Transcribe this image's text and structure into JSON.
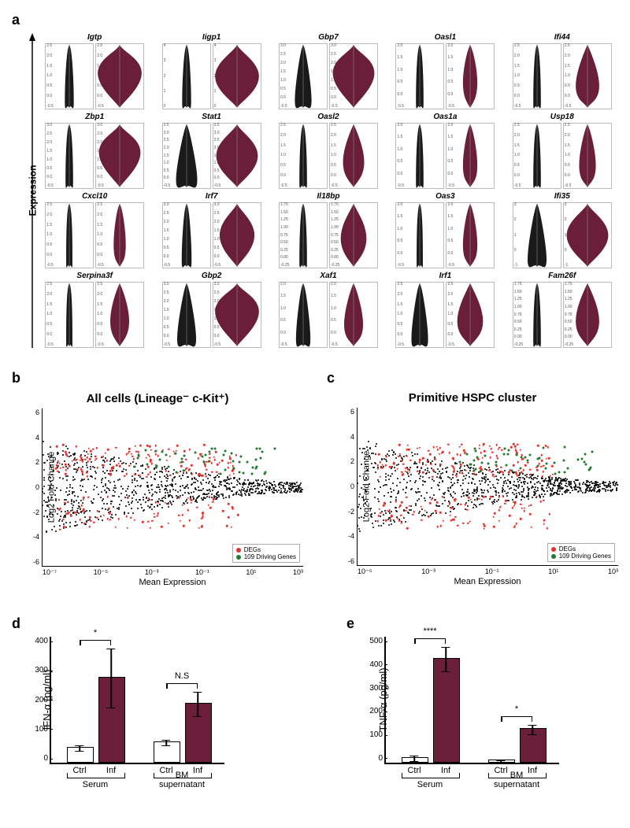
{
  "colors": {
    "violin_ctrl": "#1a1a1a",
    "violin_inf": "#6b1e3a",
    "scatter_black": "#000000",
    "scatter_red": "#e4312b",
    "scatter_green": "#1f7a2e",
    "bar_ctrl_fill": "#ffffff",
    "bar_inf_fill": "#6b1e3a",
    "bar_border": "#000000"
  },
  "panel_a": {
    "label": "a",
    "axis_label": "Expression",
    "rows": 4,
    "cols": 5,
    "genes": [
      {
        "name": "Igtp",
        "yticks": [
          "-0.5",
          "0.0",
          "0.5",
          "1.0",
          "1.5",
          "2.0",
          "2.5"
        ],
        "ctrl_width": 0.18,
        "inf_width": 0.95,
        "inf_center": 0.55
      },
      {
        "name": "Iigp1",
        "yticks": [
          "0",
          "1",
          "2",
          "3",
          "4"
        ],
        "ctrl_width": 0.18,
        "inf_width": 0.95,
        "inf_center": 0.5
      },
      {
        "name": "Gbp7",
        "yticks": [
          "-0.5",
          "0.0",
          "0.5",
          "1.0",
          "1.5",
          "2.0",
          "2.5",
          "3.0"
        ],
        "ctrl_width": 0.35,
        "inf_width": 0.9,
        "inf_center": 0.55
      },
      {
        "name": "Oasl1",
        "yticks": [
          "-0.5",
          "0.0",
          "0.5",
          "1.0",
          "1.5",
          "2.0"
        ],
        "ctrl_width": 0.15,
        "inf_width": 0.3,
        "inf_center": 0.4
      },
      {
        "name": "Ifi44",
        "yticks": [
          "-0.5",
          "0.0",
          "0.5",
          "1.0",
          "1.5",
          "2.0",
          "2.5"
        ],
        "ctrl_width": 0.15,
        "inf_width": 0.5,
        "inf_center": 0.35
      },
      {
        "name": "Zbp1",
        "yticks": [
          "-0.5",
          "0.0",
          "0.5",
          "1.0",
          "1.5",
          "2.0",
          "2.5",
          "3.0"
        ],
        "ctrl_width": 0.15,
        "inf_width": 0.9,
        "inf_center": 0.55
      },
      {
        "name": "Stat1",
        "yticks": [
          "-0.5",
          "0.0",
          "0.5",
          "1.0",
          "1.5",
          "2.0",
          "2.5",
          "3.0",
          "3.5"
        ],
        "ctrl_width": 0.45,
        "inf_width": 0.9,
        "inf_center": 0.5
      },
      {
        "name": "Oasl2",
        "yticks": [
          "-0.5",
          "0.0",
          "0.5",
          "1.0",
          "1.5",
          "2.0",
          "2.5"
        ],
        "ctrl_width": 0.15,
        "inf_width": 0.45,
        "inf_center": 0.4
      },
      {
        "name": "Oas1a",
        "yticks": [
          "-0.5",
          "0.0",
          "0.5",
          "1.0",
          "1.5",
          "2.0"
        ],
        "ctrl_width": 0.15,
        "inf_width": 0.3,
        "inf_center": 0.35
      },
      {
        "name": "Usp18",
        "yticks": [
          "-0.5",
          "0.0",
          "0.5",
          "1.0",
          "1.5",
          "2.0",
          "2.5"
        ],
        "ctrl_width": 0.15,
        "inf_width": 0.35,
        "inf_center": 0.35
      },
      {
        "name": "Cxcl10",
        "yticks": [
          "-0.5",
          "0.0",
          "0.5",
          "1.0",
          "1.5",
          "2.0",
          "2.5"
        ],
        "ctrl_width": 0.12,
        "inf_width": 0.25,
        "inf_center": 0.35
      },
      {
        "name": "Irf7",
        "yticks": [
          "-0.5",
          "0.0",
          "0.5",
          "1.0",
          "1.5",
          "2.0",
          "2.5",
          "3.0"
        ],
        "ctrl_width": 0.2,
        "inf_width": 0.75,
        "inf_center": 0.5
      },
      {
        "name": "Il18bp",
        "yticks": [
          "-0.25",
          "0.00",
          "0.25",
          "0.50",
          "0.75",
          "1.00",
          "1.25",
          "1.50",
          "1.75"
        ],
        "ctrl_width": 0.15,
        "inf_width": 0.55,
        "inf_center": 0.45
      },
      {
        "name": "Oas3",
        "yticks": [
          "-0.5",
          "0.0",
          "0.5",
          "1.0",
          "1.5",
          "2.0"
        ],
        "ctrl_width": 0.12,
        "inf_width": 0.3,
        "inf_center": 0.35
      },
      {
        "name": "Ifi35",
        "yticks": [
          "-1",
          "0",
          "1",
          "2",
          "3"
        ],
        "ctrl_width": 0.4,
        "inf_width": 0.9,
        "inf_center": 0.5
      },
      {
        "name": "Serpina3f",
        "yticks": [
          "-0.5",
          "0.0",
          "0.5",
          "1.0",
          "1.5",
          "2.0",
          "2.5"
        ],
        "ctrl_width": 0.12,
        "inf_width": 0.4,
        "inf_center": 0.4
      },
      {
        "name": "Gbp2",
        "yticks": [
          "-0.5",
          "0.0",
          "0.5",
          "1.0",
          "1.5",
          "2.0",
          "2.5",
          "3.0"
        ],
        "ctrl_width": 0.4,
        "inf_width": 0.95,
        "inf_center": 0.55
      },
      {
        "name": "Xaf1",
        "yticks": [
          "-0.5",
          "0.0",
          "0.5",
          "1.0",
          "1.5",
          "2.0"
        ],
        "ctrl_width": 0.3,
        "inf_width": 0.4,
        "inf_center": 0.35
      },
      {
        "name": "Irf1",
        "yticks": [
          "-0.5",
          "0.0",
          "0.5",
          "1.0",
          "1.5",
          "2.0",
          "2.5"
        ],
        "ctrl_width": 0.35,
        "inf_width": 0.55,
        "inf_center": 0.4
      },
      {
        "name": "Fam26f",
        "yticks": [
          "-0.25",
          "0.00",
          "0.25",
          "0.50",
          "0.75",
          "1.00",
          "1.25",
          "1.50",
          "1.75"
        ],
        "ctrl_width": 0.15,
        "inf_width": 0.5,
        "inf_center": 0.4
      }
    ]
  },
  "panel_b": {
    "label": "b",
    "title": "All cells (Lineage⁻ c-Kit⁺)",
    "ylabel": "Log2 Fold Change",
    "xlabel": "Mean Expression",
    "yticks": [
      "6",
      "4",
      "2",
      "0",
      "-2",
      "-4",
      "-6"
    ],
    "xticks": [
      "10⁻⁷",
      "10⁻⁵",
      "10⁻³",
      "10⁻¹",
      "10¹",
      "10³"
    ],
    "ylim": [
      -7,
      7
    ],
    "legend": [
      {
        "label": "DEGs",
        "color": "#e4312b"
      },
      {
        "label": "109 Driving Genes",
        "color": "#1f7a2e"
      }
    ]
  },
  "panel_c": {
    "label": "c",
    "title": "Primitive HSPC cluster",
    "ylabel": "Log2 Fold Change",
    "xlabel": "Mean Expression",
    "yticks": [
      "6",
      "4",
      "2",
      "0",
      "-2",
      "-4",
      "-6"
    ],
    "xticks": [
      "10⁻⁵",
      "10⁻³",
      "10⁻¹",
      "10¹",
      "10³"
    ],
    "ylim": [
      -7,
      7
    ],
    "legend": [
      {
        "label": "DEGs",
        "color": "#e4312b"
      },
      {
        "label": "109 Driving Genes",
        "color": "#1f7a2e"
      }
    ]
  },
  "panel_d": {
    "label": "d",
    "ylabel": "IFN-α (pg/ml)",
    "ymax": 400,
    "ytick_step": 100,
    "groups": [
      {
        "name": "Serum",
        "bars": [
          {
            "label": "Ctrl",
            "value": 45,
            "err": 10,
            "fill": "#ffffff"
          },
          {
            "label": "Inf",
            "value": 268,
            "err": 95,
            "fill": "#6b1e3a"
          }
        ],
        "sig": "*"
      },
      {
        "name": "BM supernatant",
        "bars": [
          {
            "label": "Ctrl",
            "value": 62,
            "err": 10,
            "fill": "#ffffff"
          },
          {
            "label": "Inf",
            "value": 185,
            "err": 40,
            "fill": "#6b1e3a"
          }
        ],
        "sig": "N.S"
      }
    ]
  },
  "panel_e": {
    "label": "e",
    "ylabel": "TNF-α (pg/ml)",
    "ymax": 500,
    "ytick_step": 100,
    "groups": [
      {
        "name": "Serum",
        "bars": [
          {
            "label": "Ctrl",
            "value": 15,
            "err": 12,
            "fill": "#ffffff"
          },
          {
            "label": "Inf",
            "value": 408,
            "err": 50,
            "fill": "#6b1e3a"
          }
        ],
        "sig": "****"
      },
      {
        "name": "BM supernatant",
        "bars": [
          {
            "label": "Ctrl",
            "value": 6,
            "err": 5,
            "fill": "#ffffff"
          },
          {
            "label": "Inf",
            "value": 130,
            "err": 20,
            "fill": "#6b1e3a"
          }
        ],
        "sig": "*"
      }
    ]
  }
}
